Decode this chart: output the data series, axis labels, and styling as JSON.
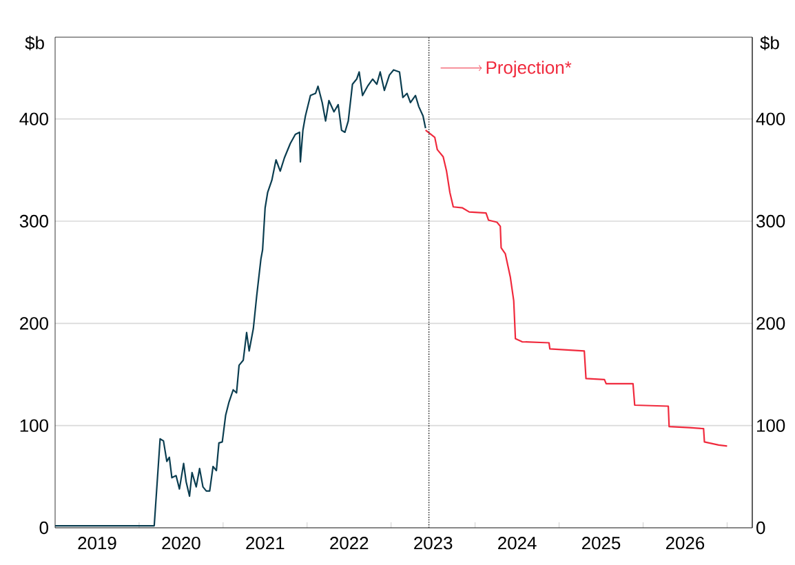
{
  "chart_data": {
    "type": "line",
    "ylabel": "$b",
    "y2label": "$b",
    "annotations": [
      "Projection*"
    ],
    "series": [
      {
        "color": "#0a3d50",
        "x": [
          2019,
          2020.18,
          2020.25,
          2020.29,
          2020.33,
          2020.36,
          2020.39,
          2020.44,
          2020.48,
          2020.53,
          2020.56,
          2020.6,
          2020.63,
          2020.68,
          2020.72,
          2020.76,
          2020.8,
          2020.84,
          2020.88,
          2020.92,
          2020.95,
          2020.99,
          2021.03,
          2021.07,
          2021.12,
          2021.16,
          2021.19,
          2021.24,
          2021.28,
          2021.31,
          2021.36,
          2021.4,
          2021.45,
          2021.47,
          2021.5,
          2021.53,
          2021.58,
          2021.63,
          2021.68,
          2021.73,
          2021.8,
          2021.86,
          2021.91,
          2021.92,
          2021.95,
          2021.98,
          2022.04,
          2022.1,
          2022.13,
          2022.18,
          2022.22,
          2022.26,
          2022.32,
          2022.37,
          2022.41,
          2022.45,
          2022.49,
          2022.54,
          2022.59,
          2022.62,
          2022.66,
          2022.72,
          2022.78,
          2022.83,
          2022.87,
          2022.92,
          2022.98,
          2023.03,
          2023.1,
          2023.14,
          2023.19,
          2023.23,
          2023.29,
          2023.33,
          2023.38,
          2023.41
        ],
        "values": [
          2,
          2,
          87,
          85,
          65,
          69,
          49,
          51,
          38,
          63,
          45,
          31,
          54,
          40,
          58,
          40,
          36,
          36,
          60,
          56,
          83,
          84,
          110,
          123,
          135,
          132,
          159,
          164,
          191,
          173,
          195,
          227,
          263,
          272,
          313,
          328,
          340,
          360,
          349,
          362,
          376,
          385,
          387,
          358,
          389,
          403,
          423,
          425,
          432,
          416,
          398,
          418,
          407,
          414,
          389,
          387,
          398,
          434,
          439,
          446,
          423,
          432,
          439,
          434,
          446,
          428,
          443,
          448,
          446,
          421,
          425,
          416,
          423,
          412,
          403,
          391
        ]
      },
      {
        "color": "#f0293c",
        "x": [
          2023.41,
          2023.52,
          2023.55,
          2023.62,
          2023.66,
          2023.7,
          2023.74,
          2023.85,
          2023.93,
          2024.13,
          2024.16,
          2024.26,
          2024.3,
          2024.31,
          2024.36,
          2024.42,
          2024.46,
          2024.48,
          2024.56,
          2024.88,
          2024.89,
          2025.3,
          2025.32,
          2025.54,
          2025.56,
          2025.88,
          2025.9,
          2026.3,
          2026.31,
          2026.55,
          2026.72,
          2026.73,
          2026.9,
          2027
        ],
        "values": [
          389,
          382,
          370,
          363,
          349,
          328,
          314,
          313,
          309,
          308,
          301,
          299,
          295,
          274,
          268,
          245,
          222,
          185,
          182,
          181,
          175,
          173,
          146,
          145,
          141,
          141,
          120,
          119,
          99,
          98,
          97,
          84,
          81,
          80
        ]
      }
    ],
    "xlim": [
      2019,
      2027.3
    ],
    "xticks": [
      {
        "value": 2019.5,
        "label": "2019"
      },
      {
        "value": 2020,
        "label": null
      },
      {
        "value": 2020.5,
        "label": "2020"
      },
      {
        "value": 2021,
        "label": null
      },
      {
        "value": 2021.5,
        "label": "2021"
      },
      {
        "value": 2022,
        "label": null
      },
      {
        "value": 2022.5,
        "label": "2022"
      },
      {
        "value": 2023,
        "label": null
      },
      {
        "value": 2023.5,
        "label": "2023"
      },
      {
        "value": 2024,
        "label": null
      },
      {
        "value": 2024.5,
        "label": "2024"
      },
      {
        "value": 2025,
        "label": null
      },
      {
        "value": 2025.5,
        "label": "2025"
      },
      {
        "value": 2026,
        "label": null
      },
      {
        "value": 2026.5,
        "label": "2026"
      },
      {
        "value": 2027,
        "label": null
      }
    ],
    "ylim": [
      0,
      480
    ],
    "yticks": [
      0,
      100,
      200,
      300,
      400
    ],
    "y2lim": [
      0,
      480
    ],
    "y2ticks": [
      0,
      100,
      200,
      300,
      400
    ],
    "grid": "y",
    "ref_lines": [
      {
        "axis": "x",
        "value": 2023.45,
        "color": "#333333",
        "line_style": "dotted"
      }
    ]
  }
}
